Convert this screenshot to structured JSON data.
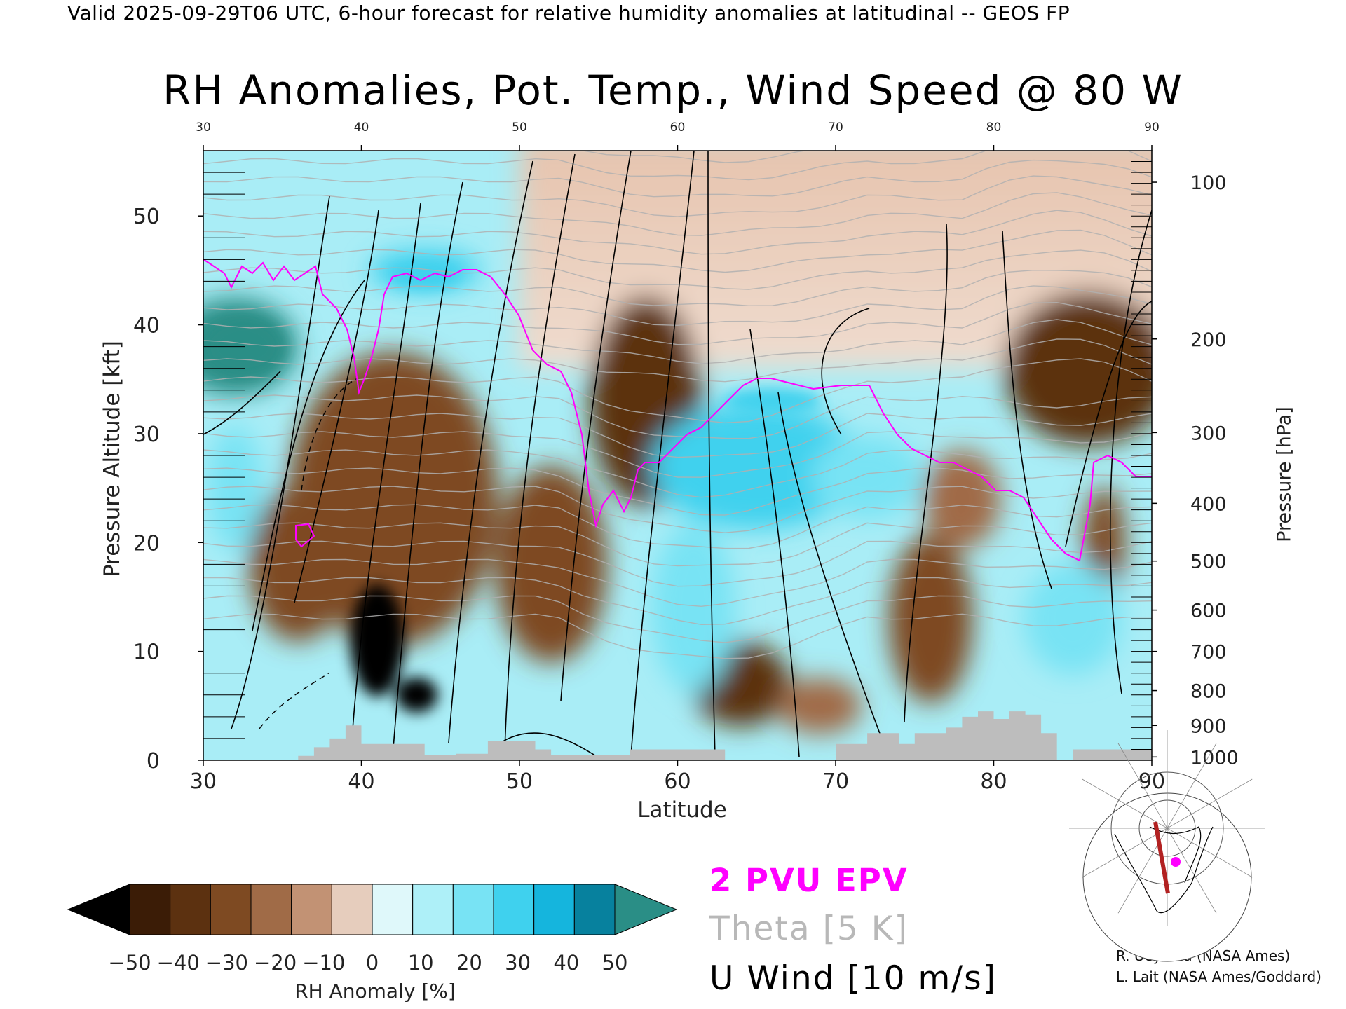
{
  "header": "Valid 2025-09-29T06 UTC, 6-hour forecast for relative humidity anomalies at latitudinal -- GEOS FP",
  "title": "RH Anomalies, Pot. Temp., Wind Speed @ 80 W",
  "legend": {
    "pvu": "2 PVU EPV",
    "theta": "Theta [5 K]",
    "uwind": "U Wind [10 m/s]"
  },
  "credits": {
    "line1": "R. Ueyama (NASA Ames)",
    "line2": "L. Lait (NASA Ames/Goddard)"
  },
  "colors": {
    "pvu_contour": "#ff00ff",
    "theta_contour": "#b0b0b0",
    "uwind_contour": "#000000",
    "topography": "#bdbdbd",
    "transect_line": "#b22222"
  },
  "chart_data": {
    "type": "heatmap",
    "title": "RH Anomalies, Pot. Temp., Wind Speed @ 80 W",
    "xlabel": "Latitude",
    "ylabel_left": "Pressure Altitude [kft]",
    "ylabel_right": "Pressure [hPa]",
    "xlim": [
      30,
      90
    ],
    "ylim": [
      0,
      56
    ],
    "x_ticks": [
      "30",
      "40",
      "50",
      "60",
      "70",
      "80",
      "90"
    ],
    "y_ticks": [
      "0",
      "10",
      "20",
      "30",
      "40",
      "50"
    ],
    "pressure_axis": [
      {
        "label": "100",
        "kft": 53.1
      },
      {
        "label": "200",
        "kft": 38.7
      },
      {
        "label": "300",
        "kft": 30.1
      },
      {
        "label": "400",
        "kft": 23.6
      },
      {
        "label": "500",
        "kft": 18.3
      },
      {
        "label": "600",
        "kft": 13.8
      },
      {
        "label": "700",
        "kft": 10.0
      },
      {
        "label": "800",
        "kft": 6.4
      },
      {
        "label": "900",
        "kft": 3.2
      },
      {
        "label": "1000",
        "kft": 0.3
      }
    ],
    "colorbar": {
      "label": "RH Anomaly [%]",
      "ticks": [
        "−50",
        "−40",
        "−30",
        "−20",
        "−10",
        "0",
        "10",
        "20",
        "30",
        "40",
        "50"
      ],
      "levels": [
        -50,
        -40,
        -30,
        -20,
        -10,
        0,
        10,
        20,
        30,
        40,
        50
      ],
      "colors": [
        "#000000",
        "#3b1c06",
        "#5c3110",
        "#7e4a22",
        "#a06b47",
        "#c29274",
        "#e6cdbd",
        "#dff8fa",
        "#aef0f8",
        "#78e3f4",
        "#3fd1ee",
        "#15b5dd",
        "#07819e",
        "#2a8e86"
      ]
    },
    "features": [
      {
        "name": "dry anomaly core",
        "lat": 41,
        "kft": 10,
        "rh": -50
      },
      {
        "name": "dry anomaly",
        "lat": 43,
        "kft": 26,
        "rh": -35
      },
      {
        "name": "dry upper",
        "lat": 58,
        "kft": 32,
        "rh": -35
      },
      {
        "name": "dry upper",
        "lat": 84,
        "kft": 35,
        "rh": -35
      },
      {
        "name": "dry lower",
        "lat": 64,
        "kft": 7,
        "rh": -35
      },
      {
        "name": "dry lower",
        "lat": 76,
        "kft": 12,
        "rh": -30
      },
      {
        "name": "moist upper",
        "lat": 33,
        "kft": 37,
        "rh": 50
      },
      {
        "name": "moist upper",
        "lat": 44,
        "kft": 45,
        "rh": 40
      },
      {
        "name": "moist trough",
        "lat": 65,
        "kft": 27,
        "rh": 45
      }
    ]
  }
}
